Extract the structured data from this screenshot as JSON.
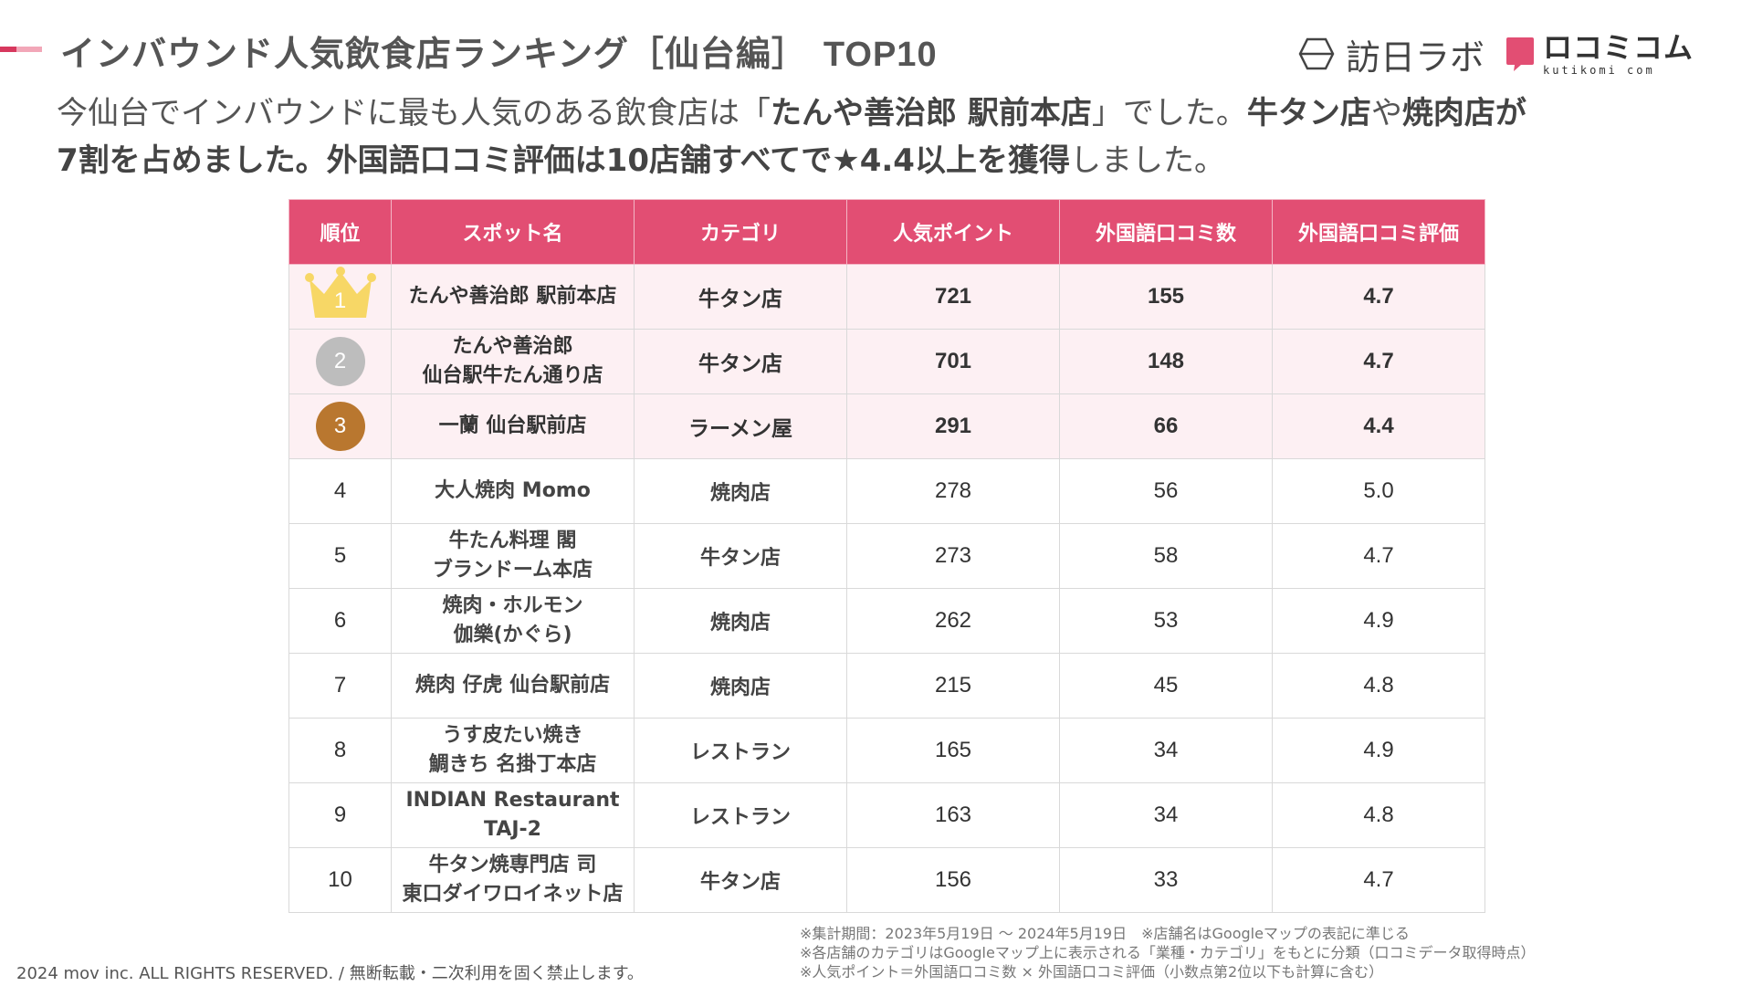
{
  "header": {
    "title": "インバウンド人気飲食店ランキング［仙台編］",
    "title_tag": "TOP10"
  },
  "logos": {
    "houjin_label": "訪日ラボ",
    "kutikomi_label": "ロコミコム",
    "kutikomi_sub": "kutikomi com"
  },
  "lead": {
    "l1_a": "今仙台でインバウンドに最も人気のある飲食店は「",
    "l1_b": "たんや善治郎 駅前本店",
    "l1_c": "」でした。",
    "l1_d": "牛タン店",
    "l1_e": "や",
    "l1_f": "焼肉店が",
    "l2_a": "7割を占めました。外国語口コミ評価は10店舗すべてで★4.4以上を獲得",
    "l2_b": "しました。"
  },
  "table": {
    "headers": [
      "順位",
      "スポット名",
      "カテゴリ",
      "人気ポイント",
      "外国語口コミ数",
      "外国語口コミ評価"
    ],
    "rows": [
      {
        "rank": "1",
        "spot": [
          "たんや善治郎 駅前本店"
        ],
        "category": "牛タン店",
        "points": "721",
        "reviews": "155",
        "rating": "4.7"
      },
      {
        "rank": "2",
        "spot": [
          "たんや善治郎",
          "仙台駅牛たん通り店"
        ],
        "category": "牛タン店",
        "points": "701",
        "reviews": "148",
        "rating": "4.7"
      },
      {
        "rank": "3",
        "spot": [
          "一蘭 仙台駅前店"
        ],
        "category": "ラーメン屋",
        "points": "291",
        "reviews": "66",
        "rating": "4.4"
      },
      {
        "rank": "4",
        "spot": [
          "大人焼肉 Momo"
        ],
        "category": "焼肉店",
        "points": "278",
        "reviews": "56",
        "rating": "5.0"
      },
      {
        "rank": "5",
        "spot": [
          "牛たん料理 閣",
          "ブランドーム本店"
        ],
        "category": "牛タン店",
        "points": "273",
        "reviews": "58",
        "rating": "4.7"
      },
      {
        "rank": "6",
        "spot": [
          "焼肉・ホルモン",
          "伽樂(かぐら)"
        ],
        "category": "焼肉店",
        "points": "262",
        "reviews": "53",
        "rating": "4.9"
      },
      {
        "rank": "7",
        "spot": [
          "焼肉 仔虎 仙台駅前店"
        ],
        "category": "焼肉店",
        "points": "215",
        "reviews": "45",
        "rating": "4.8"
      },
      {
        "rank": "8",
        "spot": [
          "うす皮たい焼き",
          "鯛きち 名掛丁本店"
        ],
        "category": "レストラン",
        "points": "165",
        "reviews": "34",
        "rating": "4.9"
      },
      {
        "rank": "9",
        "spot": [
          "INDIAN Restaurant",
          "TAJ-2"
        ],
        "category": "レストラン",
        "points": "163",
        "reviews": "34",
        "rating": "4.8"
      },
      {
        "rank": "10",
        "spot": [
          "牛タン焼専門店 司",
          "東口ダイワロイネット店"
        ],
        "category": "牛タン店",
        "points": "156",
        "reviews": "33",
        "rating": "4.7"
      }
    ]
  },
  "footer": {
    "copyright": "2024 mov inc. ALL RIGHTS RESERVED. / 無断転載・二次利用を固く禁止します。",
    "notes": [
      "※集計期間：2023年5月19日 〜 2024年5月19日　※店舗名はGoogleマップの表記に準じる",
      "※各店舗のカテゴリはGoogleマップ上に表示される「業種・カテゴリ」をもとに分類（口コミデータ取得時点）",
      "※人気ポイント＝外国語口コミ数 × 外国語口コミ評価（小数点第2位以下も計算に含む）"
    ]
  },
  "colors": {
    "accent": "#e24e73",
    "accent_light": "#fdf0f3",
    "silver": "#bdbdbd",
    "bronze": "#b9772f",
    "gold": "#f7d766"
  }
}
